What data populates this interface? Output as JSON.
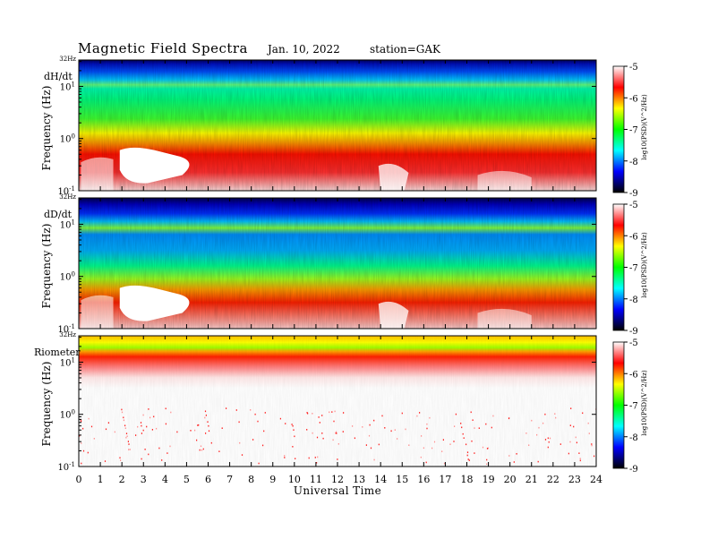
{
  "header": {
    "title": "Magnetic  Field  Spectra",
    "date": "Jan. 10, 2022",
    "station": "station=GAK"
  },
  "chart_data": {
    "type": "heatmap",
    "xlabel": "Universal Time",
    "xlim": [
      0,
      24
    ],
    "xticks": [
      "0",
      "1",
      "2",
      "3",
      "4",
      "5",
      "6",
      "7",
      "8",
      "9",
      "10",
      "11",
      "12",
      "13",
      "14",
      "15",
      "16",
      "17",
      "18",
      "19",
      "20",
      "21",
      "22",
      "23",
      "24"
    ],
    "yscale": "log",
    "colorbar_label": "log10(PSD)(V^2/Hz)",
    "colorbar_range": [
      -9,
      -5
    ],
    "colorbar_ticks": [
      "-5",
      "-6",
      "-7",
      "-8",
      "-9"
    ],
    "colormap": [
      "#ffffff",
      "#ff0000",
      "#ffff00",
      "#00ff00",
      "#00ffff",
      "#0000ff",
      "#000000"
    ],
    "panels": [
      {
        "name": "dH/dt",
        "ylabel": "Frequency (Hz)",
        "top_label": "32Hz",
        "ylim_hz": [
          0.1,
          32
        ],
        "yticks": [
          "10^1",
          "10^0",
          "10^-1"
        ]
      },
      {
        "name": "dD/dt",
        "ylabel": "Frequency (Hz)",
        "top_label": "32Hz",
        "ylim_hz": [
          0.1,
          32
        ],
        "yticks": [
          "10^1",
          "10^0",
          "10^-1"
        ]
      },
      {
        "name": "Riometer",
        "ylabel": "Frequency (Hz)",
        "top_label": "32Hz",
        "ylim_hz": [
          0.1,
          32
        ],
        "yticks": [
          "10^1",
          "10^0",
          "10^-1"
        ]
      }
    ]
  }
}
